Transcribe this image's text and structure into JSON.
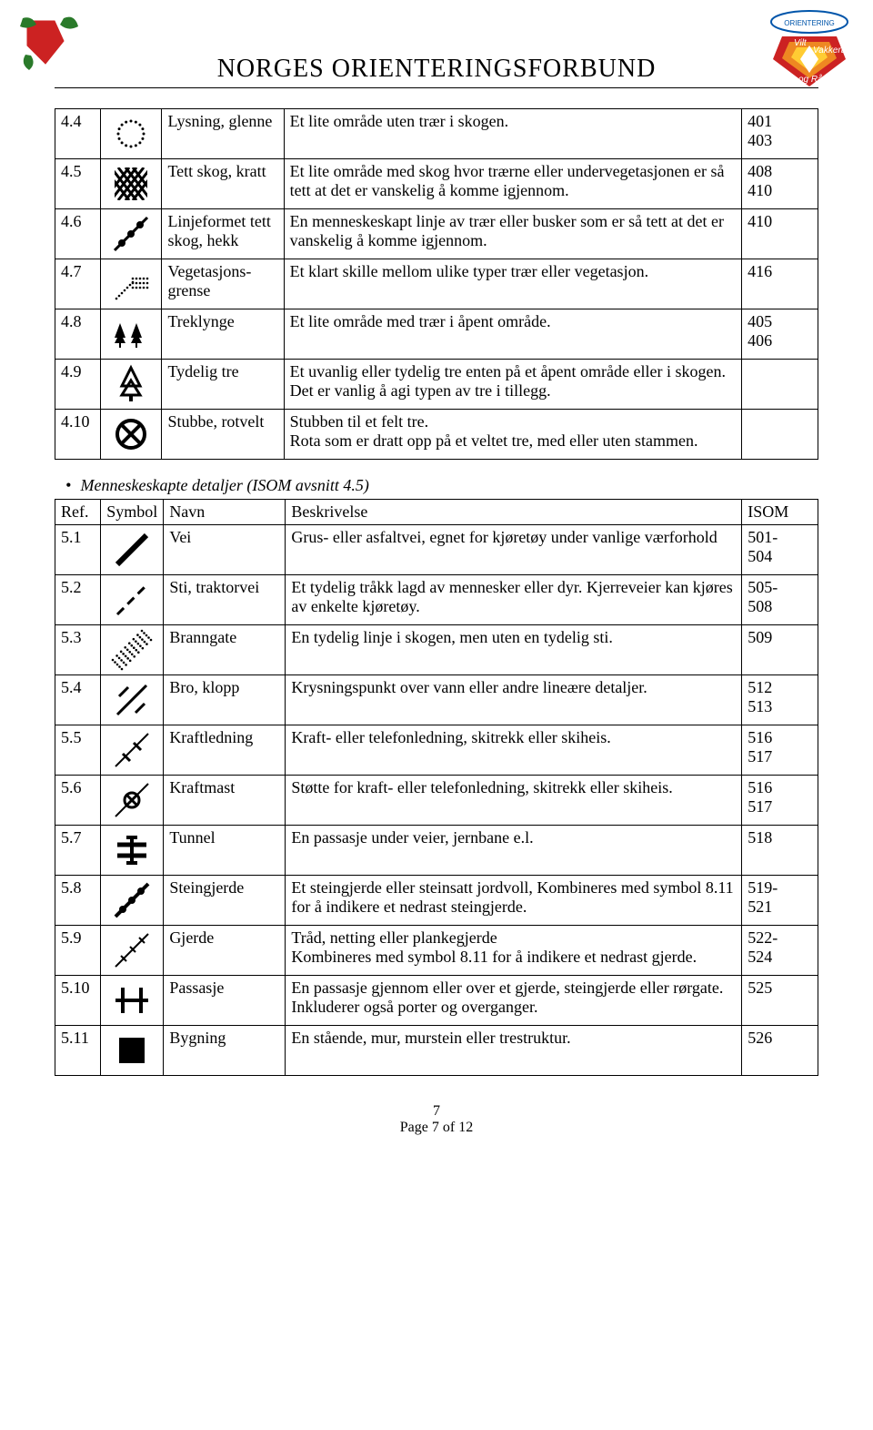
{
  "header": {
    "title": "NORGES ORIENTERINGSFORBUND"
  },
  "table1": {
    "rows": [
      {
        "ref": "4.4",
        "name": "Lysning, glenne",
        "desc": "Et lite område uten trær i skogen.",
        "isom": "401\n403",
        "icon": "dotted-circle"
      },
      {
        "ref": "4.5",
        "name": "Tett skog, kratt",
        "desc": "Et lite område med skog hvor trærne eller undervegetasjonen er så tett at det er vanskelig å komme igjennom.",
        "isom": "408\n410",
        "icon": "crosshatch"
      },
      {
        "ref": "4.6",
        "name": "Linjeformet tett skog, hekk",
        "desc": "En menneskeskapt linje av trær eller busker som er så tett at det er vanskelig å komme igjennom.",
        "isom": "410",
        "icon": "hedge-line"
      },
      {
        "ref": "4.7",
        "name": "Vegetasjons-grense",
        "desc": "Et klart skille mellom ulike typer trær eller vegetasjon.",
        "isom": "416",
        "icon": "veg-boundary"
      },
      {
        "ref": "4.8",
        "name": "Treklynge",
        "desc": "Et lite område med trær i åpent område.",
        "isom": "405\n406",
        "icon": "tree-cluster"
      },
      {
        "ref": "4.9",
        "name": "Tydelig tre",
        "desc": "Et uvanlig eller tydelig tre enten på et åpent område eller i skogen. Det er vanlig å agi typen av tre i tillegg.",
        "isom": "",
        "icon": "tree-outline"
      },
      {
        "ref": "4.10",
        "name": "Stubbe, rotvelt",
        "desc": "Stubben til et felt tre.\nRota som er dratt opp på et veltet tre, med eller uten stammen.",
        "isom": "",
        "icon": "circle-x"
      }
    ]
  },
  "section2": {
    "heading": "Menneskeskapte detaljer (ISOM avsnitt 4.5)",
    "headers": {
      "ref": "Ref.",
      "symbol": "Symbol",
      "name": "Navn",
      "desc": "Beskrivelse",
      "isom": "ISOM"
    }
  },
  "table2": {
    "rows": [
      {
        "ref": "5.1",
        "name": "Vei",
        "desc": "Grus- eller asfaltvei, egnet for kjøretøy under vanlige værforhold",
        "isom": "501-\n504",
        "icon": "road"
      },
      {
        "ref": "5.2",
        "name": "Sti, traktorvei",
        "desc": "Et tydelig tråkk lagd av mennesker eller dyr. Kjerreveier kan kjøres av enkelte kjøretøy.",
        "isom": "505-\n508",
        "icon": "path"
      },
      {
        "ref": "5.3",
        "name": "Branngate",
        "desc": "En tydelig linje i skogen, men uten en tydelig sti.",
        "isom": "509",
        "icon": "ride"
      },
      {
        "ref": "5.4",
        "name": "Bro, klopp",
        "desc": "Krysningspunkt over vann eller andre lineære detaljer.",
        "isom": "512\n513",
        "icon": "bridge"
      },
      {
        "ref": "5.5",
        "name": "Kraftledning",
        "desc": "Kraft- eller telefonledning, skitrekk eller skiheis.",
        "isom": "516\n517",
        "icon": "powerline"
      },
      {
        "ref": "5.6",
        "name": "Kraftmast",
        "desc": "Støtte for kraft- eller telefonledning, skitrekk eller skiheis.",
        "isom": "516\n517",
        "icon": "pylon"
      },
      {
        "ref": "5.7",
        "name": "Tunnel",
        "desc": "En passasje under veier, jernbane e.l.",
        "isom": "518",
        "icon": "tunnel"
      },
      {
        "ref": "5.8",
        "name": "Steingjerde",
        "desc": "Et steingjerde eller steinsatt jordvoll, Kombineres med symbol 8.11 for å indikere et nedrast steingjerde.",
        "isom": "519-\n521",
        "icon": "stonewall"
      },
      {
        "ref": "5.9",
        "name": "Gjerde",
        "desc": "Tråd, netting eller plankegjerde\nKombineres med symbol 8.11 for å indikere et nedrast gjerde.",
        "isom": "522-\n524",
        "icon": "fence"
      },
      {
        "ref": "5.10",
        "name": "Passasje",
        "desc": "En passasje gjennom eller over et gjerde, steingjerde eller rørgate. Inkluderer også porter og overganger.",
        "isom": "525",
        "icon": "crossing"
      },
      {
        "ref": "5.11",
        "name": "Bygning",
        "desc": "En stående, mur, murstein eller trestruktur.",
        "isom": "526",
        "icon": "building"
      }
    ]
  },
  "footer": {
    "page_num": "7",
    "page_of": "Page 7 of 12"
  },
  "colors": {
    "text": "#000000",
    "bg": "#ffffff",
    "leaf": "#2a7a2a",
    "red": "#cc2222",
    "orange": "#ee8822",
    "yellow": "#ffcc33"
  }
}
